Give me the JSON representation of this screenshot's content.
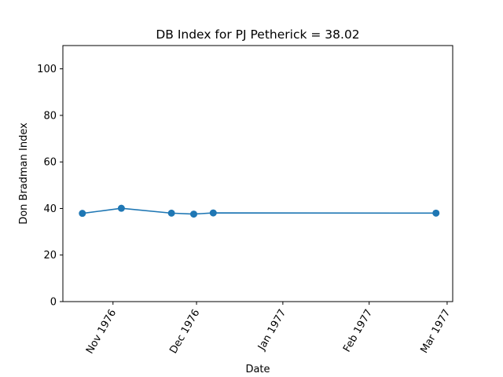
{
  "chart_data": {
    "type": "line",
    "title": "DB Index for PJ Petherick = 38.02",
    "xlabel": "Date",
    "ylabel": "Don Bradman Index",
    "ylim": [
      0,
      110
    ],
    "xlim": [
      "1976-10-14",
      "1977-03-03"
    ],
    "y_ticks": [
      0,
      20,
      40,
      60,
      80,
      100
    ],
    "x_ticks": [
      {
        "date": "1976-11-01",
        "label": "Nov 1976"
      },
      {
        "date": "1976-12-01",
        "label": "Dec 1976"
      },
      {
        "date": "1977-01-01",
        "label": "Jan 1977"
      },
      {
        "date": "1977-02-01",
        "label": "Feb 1977"
      },
      {
        "date": "1977-03-01",
        "label": "Mar 1977"
      }
    ],
    "grid": false,
    "series": [
      {
        "color": "#1f77b4",
        "marker": "circle",
        "points": [
          {
            "x": "1976-10-21",
            "y": 37.9
          },
          {
            "x": "1976-11-04",
            "y": 40.1
          },
          {
            "x": "1976-11-22",
            "y": 38.0
          },
          {
            "x": "1976-11-30",
            "y": 37.6
          },
          {
            "x": "1976-12-07",
            "y": 38.1
          },
          {
            "x": "1977-02-25",
            "y": 38.02
          }
        ]
      }
    ]
  }
}
